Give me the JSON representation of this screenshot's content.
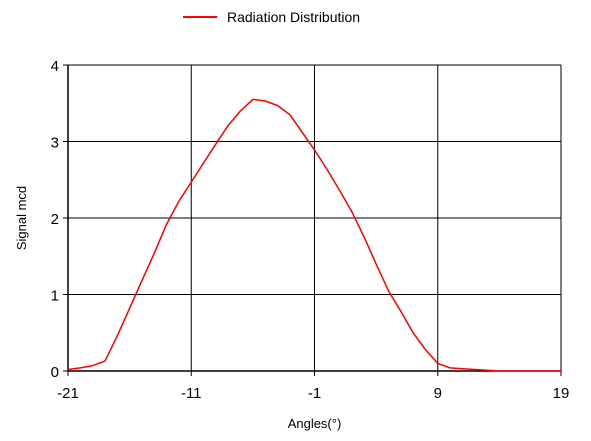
{
  "chart_data": {
    "type": "line",
    "title": "",
    "xlabel": "Angles(°)",
    "ylabel": "Signal mcd",
    "xlim": [
      -21,
      19
    ],
    "ylim": [
      0,
      4
    ],
    "x_ticks": [
      -21,
      -11,
      -1,
      9,
      19
    ],
    "y_ticks": [
      0,
      1,
      2,
      3,
      4
    ],
    "grid": true,
    "legend_position": "top-center",
    "series": [
      {
        "name": "Radiation Distribution",
        "color": "#ff0000",
        "x": [
          -21,
          -20,
          -19,
          -18,
          -17,
          -16,
          -15,
          -14,
          -13,
          -12,
          -11,
          -10,
          -9,
          -8,
          -7,
          -6,
          -5,
          -4,
          -3,
          -2,
          -1,
          0,
          1,
          2,
          3,
          4,
          5,
          6,
          7,
          8,
          9,
          10,
          11,
          12,
          13,
          14,
          15,
          16,
          17,
          18,
          19
        ],
        "y": [
          0.02,
          0.04,
          0.07,
          0.13,
          0.46,
          0.82,
          1.18,
          1.54,
          1.92,
          2.22,
          2.47,
          2.72,
          2.97,
          3.21,
          3.4,
          3.55,
          3.53,
          3.47,
          3.35,
          3.12,
          2.89,
          2.64,
          2.37,
          2.09,
          1.76,
          1.4,
          1.05,
          0.78,
          0.5,
          0.28,
          0.1,
          0.04,
          0.03,
          0.02,
          0.01,
          0.0,
          0.0,
          0.0,
          0.0,
          0.0,
          0.0
        ]
      }
    ]
  }
}
